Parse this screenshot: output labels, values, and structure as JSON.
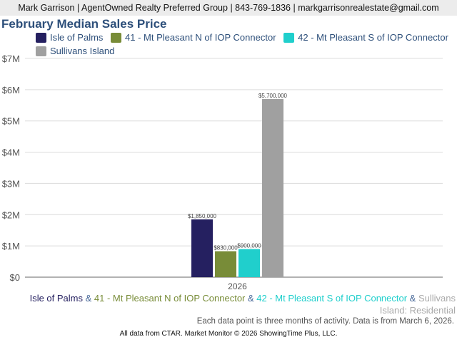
{
  "header": {
    "text": "Mark Garrison | AgentOwned Realty Preferred Group | 843-769-1836 | markgarrisonrealestate@gmail.com"
  },
  "chart_data": {
    "type": "bar",
    "title": "February Median Sales Price",
    "categories": [
      "2026"
    ],
    "series": [
      {
        "name": "Isle of Palms",
        "values": [
          1850000
        ],
        "label": "$1,850,000",
        "color": "#252060"
      },
      {
        "name": "41 - Mt Pleasant N of IOP Connector",
        "values": [
          830000
        ],
        "label": "$830,000",
        "color": "#788c38"
      },
      {
        "name": "42 - Mt Pleasant S of IOP Connector",
        "values": [
          900000
        ],
        "label": "$900,000",
        "color": "#20cfcc"
      },
      {
        "name": "Sullivans Island",
        "values": [
          5700000
        ],
        "label": "$5,700,000",
        "color": "#a0a0a0"
      }
    ],
    "ylim": [
      0,
      7000000
    ],
    "yticks": [
      {
        "v": 0,
        "label": "$0"
      },
      {
        "v": 1000000,
        "label": "$1M"
      },
      {
        "v": 2000000,
        "label": "$2M"
      },
      {
        "v": 3000000,
        "label": "$3M"
      },
      {
        "v": 4000000,
        "label": "$4M"
      },
      {
        "v": 5000000,
        "label": "$5M"
      },
      {
        "v": 6000000,
        "label": "$6M"
      },
      {
        "v": 7000000,
        "label": "$7M"
      }
    ],
    "grid": true,
    "legend": "top"
  },
  "caption": {
    "parts": [
      "Isle of Palms",
      " & ",
      "41 - Mt Pleasant N of IOP Connector",
      " & ",
      "42 - Mt Pleasant S of IOP Connector",
      " & ",
      "Sullivans Island",
      ": Residential"
    ]
  },
  "note": "Each data point is three months of activity. Data is from March 6, 2026.",
  "footer": "All data from CTAR. Market Monitor © 2026 ShowingTime Plus, LLC."
}
